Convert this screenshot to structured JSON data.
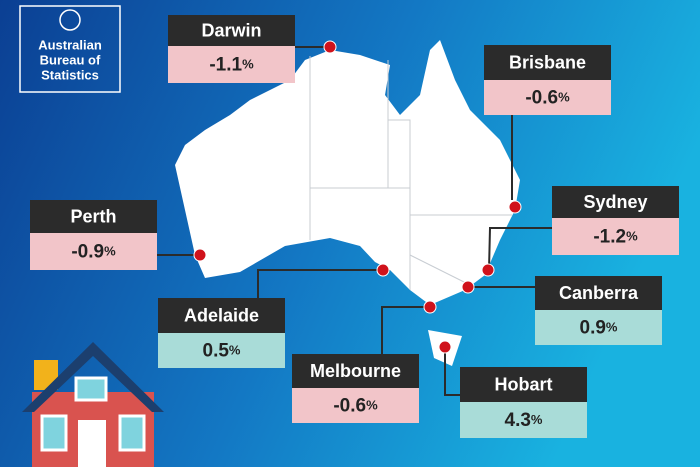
{
  "logo": {
    "lines": [
      "Australian",
      "Bureau of",
      "Statistics"
    ]
  },
  "cities": [
    {
      "name": "Darwin",
      "change": -1.1,
      "unit": "%",
      "color": "#f2c5c9"
    },
    {
      "name": "Brisbane",
      "change": -0.6,
      "unit": "%",
      "color": "#f2c5c9"
    },
    {
      "name": "Perth",
      "change": -0.9,
      "unit": "%",
      "color": "#f2c5c9"
    },
    {
      "name": "Sydney",
      "change": -1.2,
      "unit": "%",
      "color": "#f2c5c9"
    },
    {
      "name": "Adelaide",
      "change": 0.5,
      "unit": "%",
      "color": "#a9dcd8"
    },
    {
      "name": "Canberra",
      "change": 0.9,
      "unit": "%",
      "color": "#a9dcd8"
    },
    {
      "name": "Melbourne",
      "change": -0.6,
      "unit": "%",
      "color": "#f2c5c9"
    },
    {
      "name": "Hobart",
      "change": 4.3,
      "unit": "%",
      "color": "#a9dcd8"
    }
  ]
}
